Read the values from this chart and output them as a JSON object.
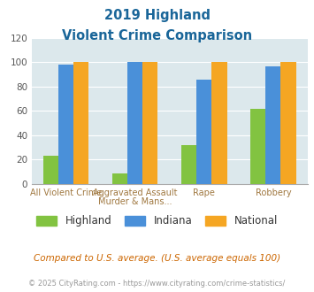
{
  "title_line1": "2019 Highland",
  "title_line2": "Violent Crime Comparison",
  "top_labels": [
    "",
    "Aggravated Assault",
    "Rape",
    ""
  ],
  "bot_labels": [
    "All Violent Crime",
    "Murder & Mans...",
    "",
    "Robbery"
  ],
  "series": {
    "Highland": [
      23,
      9,
      32,
      62
    ],
    "Indiana": [
      98,
      100,
      86,
      97
    ],
    "National": [
      100,
      100,
      100,
      100
    ]
  },
  "colors": {
    "Highland": "#82c341",
    "Indiana": "#4a90d9",
    "National": "#f5a623"
  },
  "ylim": [
    0,
    120
  ],
  "yticks": [
    0,
    20,
    40,
    60,
    80,
    100,
    120
  ],
  "plot_bg": "#dce8ec",
  "title_color": "#1a6699",
  "xlabel_color": "#a07840",
  "footer_note": "Compared to U.S. average. (U.S. average equals 100)",
  "footer_credit": "© 2025 CityRating.com - https://www.cityrating.com/crime-statistics/",
  "footer_note_color": "#cc6600",
  "footer_credit_color": "#999999",
  "bar_width": 0.22
}
